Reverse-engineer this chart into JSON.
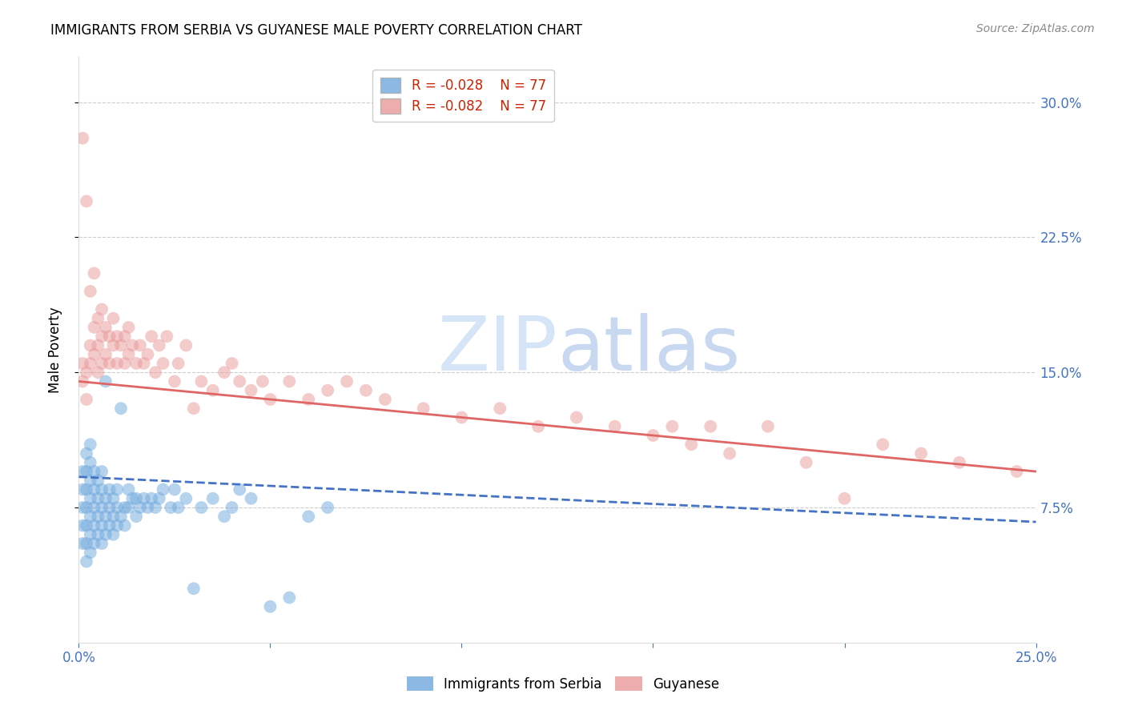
{
  "title": "IMMIGRANTS FROM SERBIA VS GUYANESE MALE POVERTY CORRELATION CHART",
  "source": "Source: ZipAtlas.com",
  "ylabel": "Male Poverty",
  "ytick_labels": [
    "30.0%",
    "22.5%",
    "15.0%",
    "7.5%"
  ],
  "ytick_values": [
    0.3,
    0.225,
    0.15,
    0.075
  ],
  "xlim": [
    0.0,
    0.25
  ],
  "ylim": [
    0.0,
    0.325
  ],
  "legend_r_serbia": "R = -0.028",
  "legend_n_serbia": "N = 77",
  "legend_r_guyanese": "R = -0.082",
  "legend_n_guyanese": "N = 77",
  "serbia_color": "#6fa8dc",
  "guyanese_color": "#ea9999",
  "serbia_line_color": "#4472c4",
  "guyanese_line_color": "#e06666",
  "axis_color": "#4472c4",
  "grid_color": "#cccccc",
  "watermark_color": "#d6e4f7",
  "serbia_x": [
    0.001,
    0.001,
    0.001,
    0.001,
    0.001,
    0.002,
    0.002,
    0.002,
    0.002,
    0.002,
    0.002,
    0.002,
    0.003,
    0.003,
    0.003,
    0.003,
    0.003,
    0.003,
    0.003,
    0.004,
    0.004,
    0.004,
    0.004,
    0.004,
    0.005,
    0.005,
    0.005,
    0.005,
    0.006,
    0.006,
    0.006,
    0.006,
    0.006,
    0.007,
    0.007,
    0.007,
    0.007,
    0.008,
    0.008,
    0.008,
    0.009,
    0.009,
    0.009,
    0.01,
    0.01,
    0.01,
    0.011,
    0.011,
    0.012,
    0.012,
    0.013,
    0.013,
    0.014,
    0.015,
    0.015,
    0.016,
    0.017,
    0.018,
    0.019,
    0.02,
    0.021,
    0.022,
    0.024,
    0.025,
    0.026,
    0.028,
    0.03,
    0.032,
    0.035,
    0.038,
    0.04,
    0.042,
    0.045,
    0.05,
    0.055,
    0.06,
    0.065
  ],
  "serbia_y": [
    0.055,
    0.065,
    0.075,
    0.085,
    0.095,
    0.045,
    0.055,
    0.065,
    0.075,
    0.085,
    0.095,
    0.105,
    0.05,
    0.06,
    0.07,
    0.08,
    0.09,
    0.1,
    0.11,
    0.055,
    0.065,
    0.075,
    0.085,
    0.095,
    0.06,
    0.07,
    0.08,
    0.09,
    0.055,
    0.065,
    0.075,
    0.085,
    0.095,
    0.06,
    0.07,
    0.08,
    0.145,
    0.065,
    0.075,
    0.085,
    0.06,
    0.07,
    0.08,
    0.065,
    0.075,
    0.085,
    0.07,
    0.13,
    0.065,
    0.075,
    0.075,
    0.085,
    0.08,
    0.07,
    0.08,
    0.075,
    0.08,
    0.075,
    0.08,
    0.075,
    0.08,
    0.085,
    0.075,
    0.085,
    0.075,
    0.08,
    0.03,
    0.075,
    0.08,
    0.07,
    0.075,
    0.085,
    0.08,
    0.02,
    0.025,
    0.07,
    0.075
  ],
  "guyanese_x": [
    0.001,
    0.001,
    0.001,
    0.002,
    0.002,
    0.002,
    0.003,
    0.003,
    0.003,
    0.004,
    0.004,
    0.004,
    0.005,
    0.005,
    0.005,
    0.006,
    0.006,
    0.006,
    0.007,
    0.007,
    0.008,
    0.008,
    0.009,
    0.009,
    0.01,
    0.01,
    0.011,
    0.012,
    0.012,
    0.013,
    0.013,
    0.014,
    0.015,
    0.016,
    0.017,
    0.018,
    0.019,
    0.02,
    0.021,
    0.022,
    0.023,
    0.025,
    0.026,
    0.028,
    0.03,
    0.032,
    0.035,
    0.038,
    0.04,
    0.042,
    0.045,
    0.048,
    0.05,
    0.055,
    0.06,
    0.065,
    0.07,
    0.075,
    0.08,
    0.09,
    0.1,
    0.11,
    0.12,
    0.13,
    0.14,
    0.15,
    0.155,
    0.16,
    0.165,
    0.17,
    0.18,
    0.19,
    0.2,
    0.21,
    0.22,
    0.23,
    0.245
  ],
  "guyanese_y": [
    0.145,
    0.155,
    0.28,
    0.135,
    0.15,
    0.245,
    0.155,
    0.195,
    0.165,
    0.16,
    0.175,
    0.205,
    0.15,
    0.165,
    0.18,
    0.155,
    0.17,
    0.185,
    0.16,
    0.175,
    0.155,
    0.17,
    0.165,
    0.18,
    0.155,
    0.17,
    0.165,
    0.155,
    0.17,
    0.16,
    0.175,
    0.165,
    0.155,
    0.165,
    0.155,
    0.16,
    0.17,
    0.15,
    0.165,
    0.155,
    0.17,
    0.145,
    0.155,
    0.165,
    0.13,
    0.145,
    0.14,
    0.15,
    0.155,
    0.145,
    0.14,
    0.145,
    0.135,
    0.145,
    0.135,
    0.14,
    0.145,
    0.14,
    0.135,
    0.13,
    0.125,
    0.13,
    0.12,
    0.125,
    0.12,
    0.115,
    0.12,
    0.11,
    0.12,
    0.105,
    0.12,
    0.1,
    0.08,
    0.11,
    0.105,
    0.1,
    0.095
  ]
}
